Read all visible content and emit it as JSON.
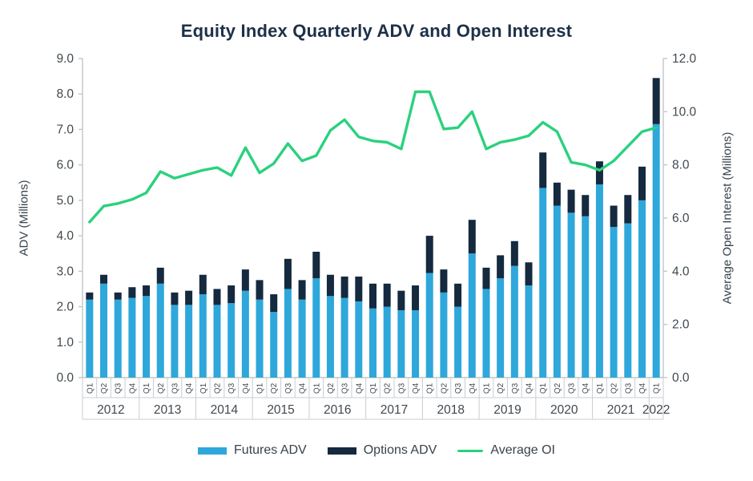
{
  "chart_data": {
    "type": "bar",
    "subtype": "stacked-column-with-line",
    "title": "Equity Index Quarterly ADV and Open Interest",
    "grid": false,
    "legend_position": "bottom",
    "years": [
      {
        "label": "2012",
        "quarters": [
          "Q1",
          "Q2",
          "Q3",
          "Q4"
        ]
      },
      {
        "label": "2013",
        "quarters": [
          "Q1",
          "Q2",
          "Q3",
          "Q4"
        ]
      },
      {
        "label": "2014",
        "quarters": [
          "Q1",
          "Q2",
          "Q3",
          "Q4"
        ]
      },
      {
        "label": "2015",
        "quarters": [
          "Q1",
          "Q2",
          "Q3",
          "Q4"
        ]
      },
      {
        "label": "2016",
        "quarters": [
          "Q1",
          "Q2",
          "Q3",
          "Q4"
        ]
      },
      {
        "label": "2017",
        "quarters": [
          "Q1",
          "Q2",
          "Q3",
          "Q4"
        ]
      },
      {
        "label": "2018",
        "quarters": [
          "Q1",
          "Q2",
          "Q3",
          "Q4"
        ]
      },
      {
        "label": "2019",
        "quarters": [
          "Q1",
          "Q2",
          "Q3",
          "Q4"
        ]
      },
      {
        "label": "2020",
        "quarters": [
          "Q1",
          "Q2",
          "Q3",
          "Q4"
        ]
      },
      {
        "label": "2021",
        "quarters": [
          "Q1",
          "Q2",
          "Q3",
          "Q4"
        ]
      },
      {
        "label": "2022",
        "quarters": [
          "Q1"
        ]
      }
    ],
    "left_axis": {
      "label": "ADV (Millions)",
      "min": 0,
      "max": 9,
      "tick_step": 1,
      "ticks": [
        "9.0",
        "8.0",
        "7.0",
        "6.0",
        "5.0",
        "4.0",
        "3.0",
        "2.0",
        "1.0",
        "0.0"
      ]
    },
    "right_axis": {
      "label": "Average Open Interest (Millions)",
      "min": 0,
      "max": 12,
      "tick_step": 2,
      "ticks": [
        "12.0",
        "10.0",
        "8.0",
        "6.0",
        "4.0",
        "2.0",
        "0.0"
      ]
    },
    "series": [
      {
        "name": "Futures ADV",
        "type": "bar",
        "stack": "ADV",
        "axis": "left",
        "color": "#2ea7db",
        "values": [
          2.2,
          2.65,
          2.2,
          2.25,
          2.3,
          2.65,
          2.05,
          2.05,
          2.35,
          2.05,
          2.1,
          2.45,
          2.2,
          1.85,
          2.5,
          2.2,
          2.8,
          2.3,
          2.25,
          2.15,
          1.95,
          2.0,
          1.9,
          1.9,
          2.95,
          2.4,
          2.0,
          3.5,
          2.5,
          2.8,
          3.15,
          2.6,
          5.35,
          4.85,
          4.65,
          4.55,
          5.45,
          4.25,
          4.35,
          5.0,
          7.15
        ]
      },
      {
        "name": "Options ADV",
        "type": "bar",
        "stack": "ADV",
        "axis": "left",
        "color": "#15293f",
        "values": [
          0.2,
          0.25,
          0.2,
          0.3,
          0.3,
          0.45,
          0.35,
          0.4,
          0.55,
          0.45,
          0.5,
          0.6,
          0.55,
          0.5,
          0.85,
          0.55,
          0.75,
          0.6,
          0.6,
          0.7,
          0.7,
          0.65,
          0.55,
          0.7,
          1.05,
          0.65,
          0.65,
          0.95,
          0.6,
          0.65,
          0.7,
          0.65,
          1.0,
          0.65,
          0.65,
          0.6,
          0.65,
          0.6,
          0.8,
          0.95,
          1.3
        ]
      },
      {
        "name": "Average OI",
        "type": "line",
        "axis": "right",
        "color": "#2bd17e",
        "values": [
          5.85,
          6.45,
          6.55,
          6.7,
          6.95,
          7.75,
          7.5,
          7.65,
          7.8,
          7.9,
          7.6,
          8.65,
          7.7,
          8.05,
          8.8,
          8.15,
          8.35,
          9.3,
          9.7,
          9.05,
          8.9,
          8.85,
          8.6,
          10.75,
          10.75,
          9.35,
          9.4,
          10.0,
          8.6,
          8.85,
          8.95,
          9.1,
          9.6,
          9.25,
          8.1,
          8.0,
          7.8,
          8.15,
          8.7,
          9.25,
          9.4
        ]
      }
    ],
    "colors": {
      "title_text": "#1d3048",
      "axis_text": "#40494f",
      "axis_line": "#c2c6ca",
      "category_grid": "#c9cdd1"
    }
  }
}
